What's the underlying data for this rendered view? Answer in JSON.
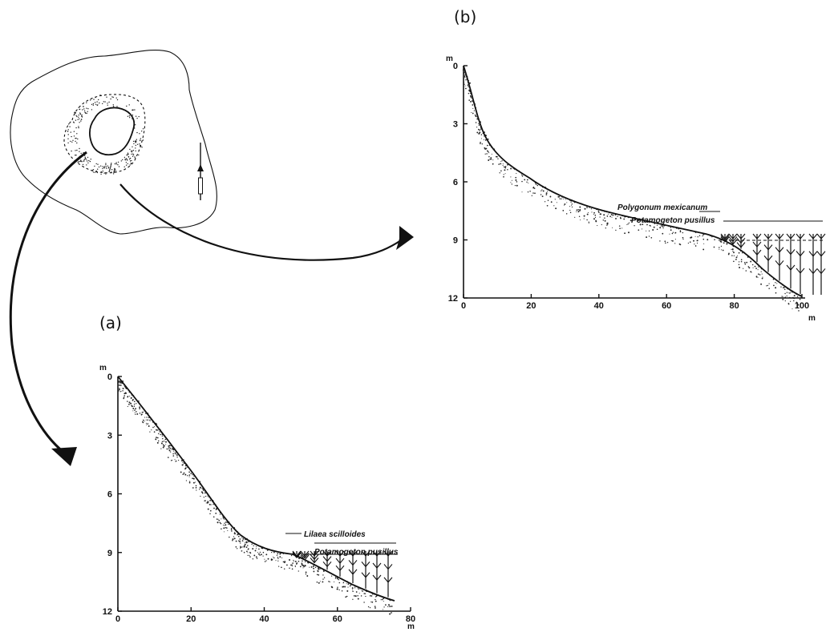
{
  "map": {},
  "panel_b": {
    "label": "(b)",
    "y_unit": "m",
    "x_unit": "m",
    "y_ticks": [
      "0",
      "3",
      "6",
      "9",
      "12"
    ],
    "x_ticks": [
      "0",
      "20",
      "40",
      "60",
      "80",
      "100"
    ],
    "species": [
      {
        "name": "Polygonum mexicanum"
      },
      {
        "name": "Potamogeton pusillus"
      }
    ]
  },
  "panel_a": {
    "label": "(a)",
    "y_unit": "m",
    "x_unit": "m",
    "y_ticks": [
      "0",
      "3",
      "6",
      "9",
      "12"
    ],
    "x_ticks": [
      "0",
      "20",
      "40",
      "60",
      "80"
    ],
    "species": [
      {
        "name": "Lilaea scilloides"
      },
      {
        "name": "Potamogeton pusillus"
      }
    ]
  }
}
